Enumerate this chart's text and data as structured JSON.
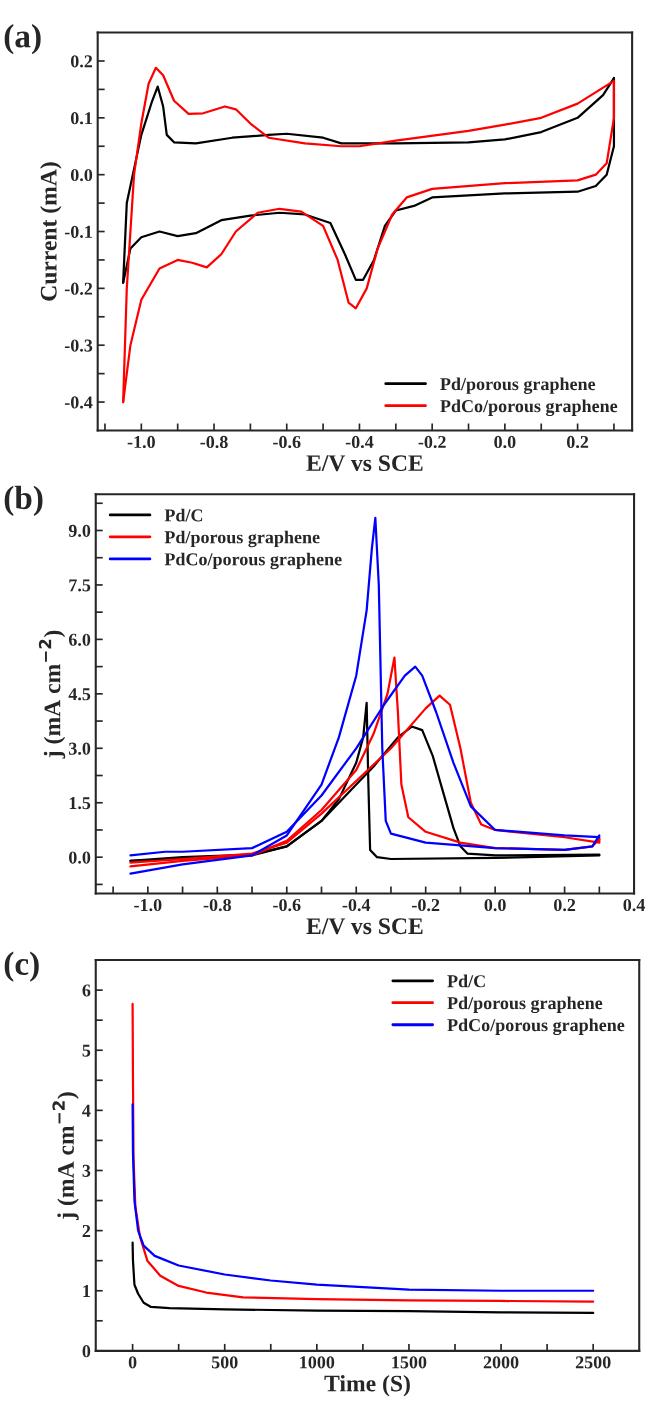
{
  "chart_data": [
    {
      "type": "line",
      "xlabel": "E/V vs SCE",
      "ylabel": "Current (mA)",
      "annotations": [
        "(a)"
      ],
      "legend": "bottom right",
      "grid": false,
      "marker": "none",
      "line_style": "solid",
      "xlim": [
        -1.12,
        0.35
      ],
      "ylim": [
        -0.45,
        0.25
      ],
      "xticks": [
        {
          "value": -1.1,
          "label": null
        },
        {
          "value": -1.0,
          "label": "-1.0"
        },
        {
          "value": -0.9,
          "label": null
        },
        -0.8,
        {
          "value": -0.7,
          "label": null
        },
        -0.6,
        {
          "value": -0.5,
          "label": null
        },
        -0.4,
        {
          "value": -0.3,
          "label": null
        },
        -0.2,
        {
          "value": -0.1,
          "label": null
        },
        {
          "value": 0.0,
          "label": "0.0"
        },
        {
          "value": 0.1,
          "label": null
        },
        0.2,
        {
          "value": 0.3,
          "label": null
        }
      ],
      "yticks": [
        -0.4,
        {
          "value": -0.35,
          "label": null
        },
        -0.3,
        {
          "value": -0.25,
          "label": null
        },
        -0.2,
        {
          "value": -0.15,
          "label": null
        },
        -0.1,
        {
          "value": -0.05,
          "label": null
        },
        {
          "value": 0.0,
          "label": "0.0"
        },
        {
          "value": 0.05,
          "label": null
        },
        0.1,
        {
          "value": 0.15,
          "label": null
        },
        0.2
      ],
      "series": [
        {
          "name": "Pd/porous graphene",
          "color": "#000000",
          "x": [
            -1.05,
            -1.04,
            -1.0,
            -0.97,
            -0.955,
            -0.94,
            -0.93,
            -0.91,
            -0.85,
            -0.75,
            -0.65,
            -0.6,
            -0.5,
            -0.45,
            -0.3,
            -0.1,
            0.0,
            0.1,
            0.2,
            0.27,
            0.3
          ],
          "values": [
            -0.19,
            -0.05,
            0.07,
            0.13,
            0.155,
            0.12,
            0.07,
            0.057,
            0.055,
            0.065,
            0.07,
            0.072,
            0.065,
            0.055,
            0.055,
            0.057,
            0.062,
            0.075,
            0.1,
            0.14,
            0.17
          ]
        },
        {
          "color": "#000000",
          "x": [
            0.3,
            0.3,
            0.28,
            0.25,
            0.2,
            0.0,
            -0.2,
            -0.25,
            -0.3,
            -0.33,
            -0.36,
            -0.39,
            -0.41,
            -0.44,
            -0.48,
            -0.55,
            -0.62,
            -0.7,
            -0.78,
            -0.85,
            -0.9,
            -0.95,
            -1.0,
            -1.03,
            -1.05
          ],
          "values": [
            0.17,
            0.05,
            0.0,
            -0.02,
            -0.03,
            -0.033,
            -0.04,
            -0.055,
            -0.063,
            -0.09,
            -0.15,
            -0.185,
            -0.185,
            -0.14,
            -0.085,
            -0.07,
            -0.067,
            -0.072,
            -0.08,
            -0.103,
            -0.108,
            -0.1,
            -0.11,
            -0.13,
            -0.19
          ]
        },
        {
          "name": "PdCo/porous graphene",
          "color": "#ff0000",
          "x": [
            -1.05,
            -1.04,
            -1.02,
            -1.0,
            -0.98,
            -0.96,
            -0.94,
            -0.91,
            -0.87,
            -0.83,
            -0.77,
            -0.74,
            -0.7,
            -0.65,
            -0.55,
            -0.45,
            -0.4,
            -0.3,
            -0.1,
            0.0,
            0.1,
            0.2,
            0.3
          ],
          "values": [
            -0.4,
            -0.2,
            0.0,
            0.09,
            0.16,
            0.188,
            0.175,
            0.13,
            0.107,
            0.108,
            0.12,
            0.115,
            0.09,
            0.065,
            0.055,
            0.05,
            0.05,
            0.06,
            0.077,
            0.088,
            0.1,
            0.125,
            0.165
          ]
        },
        {
          "color": "#ff0000",
          "x": [
            0.3,
            0.3,
            0.28,
            0.25,
            0.2,
            0.0,
            -0.2,
            -0.27,
            -0.31,
            -0.35,
            -0.38,
            -0.41,
            -0.43,
            -0.46,
            -0.5,
            -0.56,
            -0.62,
            -0.68,
            -0.74,
            -0.78,
            -0.82,
            -0.86,
            -0.9,
            -0.95,
            -1.0,
            -1.03,
            -1.05
          ],
          "values": [
            0.165,
            0.1,
            0.02,
            0.0,
            -0.01,
            -0.015,
            -0.025,
            -0.04,
            -0.07,
            -0.13,
            -0.2,
            -0.235,
            -0.225,
            -0.15,
            -0.09,
            -0.065,
            -0.06,
            -0.067,
            -0.1,
            -0.14,
            -0.163,
            -0.155,
            -0.15,
            -0.165,
            -0.22,
            -0.3,
            -0.4
          ]
        }
      ]
    },
    {
      "type": "line",
      "xlabel": "E/V vs SCE",
      "ylabel": "j (mA cm$^{−2}$)",
      "annotations": [
        "(b)"
      ],
      "legend": "top left",
      "grid": false,
      "marker": "none",
      "line_style": "solid",
      "xlim": [
        -1.15,
        0.4
      ],
      "ylim": [
        -1.0,
        10.0
      ],
      "xticks": [
        {
          "value": -1.1,
          "label": null
        },
        {
          "value": -1.0,
          "label": "-1.0"
        },
        {
          "value": -0.9,
          "label": null
        },
        -0.8,
        {
          "value": -0.7,
          "label": null
        },
        -0.6,
        {
          "value": -0.5,
          "label": null
        },
        -0.4,
        {
          "value": -0.3,
          "label": null
        },
        -0.2,
        {
          "value": -0.1,
          "label": null
        },
        {
          "value": 0.0,
          "label": "0.0"
        },
        {
          "value": 0.1,
          "label": null
        },
        0.2,
        {
          "value": 0.3,
          "label": null
        },
        0.4
      ],
      "yticks": [
        {
          "value": -0.75,
          "label": null
        },
        {
          "value": 0.0,
          "label": "0.0"
        },
        {
          "value": 0.75,
          "label": null
        },
        1.5,
        {
          "value": 2.25,
          "label": null
        },
        {
          "value": 3.0,
          "label": "3.0"
        },
        {
          "value": 3.75,
          "label": null
        },
        4.5,
        {
          "value": 5.25,
          "label": null
        },
        {
          "value": 6.0,
          "label": "6.0"
        },
        {
          "value": 6.75,
          "label": null
        },
        7.5,
        {
          "value": 8.25,
          "label": null
        },
        {
          "value": 9.0,
          "label": "9.0"
        },
        {
          "value": 9.75,
          "label": null
        }
      ],
      "series": [
        {
          "name": "Pd/C",
          "color": "#000000",
          "x": [
            -1.05,
            -0.9,
            -0.7,
            -0.6,
            -0.5,
            -0.45,
            -0.4,
            -0.38,
            -0.37,
            -0.365,
            -0.36,
            -0.34,
            -0.3,
            0.0,
            0.3
          ],
          "values": [
            -0.1,
            0.0,
            0.07,
            0.3,
            1.0,
            1.6,
            2.6,
            3.3,
            4.25,
            2.0,
            0.2,
            0.0,
            -0.05,
            -0.02,
            0.05
          ]
        },
        {
          "color": "#000000",
          "x": [
            0.3,
            0.0,
            -0.08,
            -0.1,
            -0.12,
            -0.15,
            -0.18,
            -0.21,
            -0.24,
            -0.28,
            -0.35,
            -0.4,
            -0.5,
            -0.6,
            -0.7,
            -0.9,
            -1.05
          ],
          "values": [
            0.07,
            0.05,
            0.1,
            0.3,
            0.8,
            1.8,
            2.8,
            3.5,
            3.6,
            3.3,
            2.5,
            2.0,
            1.0,
            0.3,
            0.05,
            -0.05,
            -0.1
          ]
        },
        {
          "name": "Pd/porous graphene",
          "color": "#ff0000",
          "x": [
            -1.05,
            -0.9,
            -0.7,
            -0.6,
            -0.5,
            -0.4,
            -0.35,
            -0.31,
            -0.29,
            -0.28,
            -0.27,
            -0.25,
            -0.2,
            -0.1,
            0.0,
            0.2,
            0.28,
            0.3
          ],
          "values": [
            -0.25,
            -0.1,
            0.05,
            0.45,
            1.3,
            2.4,
            3.4,
            4.5,
            5.5,
            4.0,
            2.0,
            1.1,
            0.7,
            0.4,
            0.25,
            0.2,
            0.3,
            0.5
          ]
        },
        {
          "color": "#ff0000",
          "x": [
            0.3,
            0.3,
            0.2,
            0.0,
            -0.04,
            -0.07,
            -0.1,
            -0.13,
            -0.16,
            -0.2,
            -0.3,
            -0.4,
            -0.5,
            -0.6,
            -0.7,
            -0.9,
            -1.05
          ],
          "values": [
            0.5,
            0.4,
            0.55,
            0.75,
            0.9,
            1.5,
            3.0,
            4.2,
            4.45,
            4.1,
            3.0,
            2.1,
            1.2,
            0.4,
            0.1,
            -0.05,
            -0.15
          ]
        },
        {
          "name": "PdCo/porous graphene",
          "color": "#0000ff",
          "x": [
            -1.05,
            -0.9,
            -0.7,
            -0.6,
            -0.5,
            -0.45,
            -0.4,
            -0.37,
            -0.355,
            -0.345,
            -0.335,
            -0.325,
            -0.315,
            -0.3,
            -0.2,
            0.0,
            0.2,
            0.28,
            0.3
          ],
          "values": [
            -0.45,
            -0.2,
            0.05,
            0.6,
            2.0,
            3.3,
            5.0,
            6.8,
            8.5,
            9.35,
            7.5,
            3.0,
            1.0,
            0.65,
            0.4,
            0.25,
            0.2,
            0.3,
            0.6
          ]
        },
        {
          "color": "#0000ff",
          "x": [
            0.3,
            0.2,
            0.0,
            -0.07,
            -0.12,
            -0.17,
            -0.21,
            -0.23,
            -0.26,
            -0.32,
            -0.4,
            -0.5,
            -0.6,
            -0.7,
            -0.9,
            -0.95,
            -1.05
          ],
          "values": [
            0.55,
            0.6,
            0.75,
            1.4,
            2.6,
            4.0,
            5.0,
            5.25,
            5.0,
            4.2,
            3.0,
            1.7,
            0.7,
            0.25,
            0.15,
            0.15,
            0.05
          ]
        }
      ]
    },
    {
      "type": "line",
      "xlabel": "Time (S)",
      "ylabel": "j (mA cm$^{−2}$)",
      "annotations": [
        "(c)"
      ],
      "legend": "top right",
      "grid": false,
      "marker": "none",
      "line_style": "solid",
      "xlim": [
        -200,
        2750
      ],
      "ylim": [
        0,
        6.5
      ],
      "xticks": [
        0,
        {
          "value": 250,
          "label": null
        },
        500,
        {
          "value": 750,
          "label": null
        },
        1000,
        {
          "value": 1250,
          "label": null
        },
        1500,
        {
          "value": 1750,
          "label": null
        },
        2000,
        {
          "value": 2250,
          "label": null
        },
        2500
      ],
      "yticks": [
        0,
        {
          "value": 0.5,
          "label": null
        },
        1,
        {
          "value": 1.5,
          "label": null
        },
        2,
        {
          "value": 2.5,
          "label": null
        },
        3,
        {
          "value": 3.5,
          "label": null
        },
        4,
        {
          "value": 4.5,
          "label": null
        },
        5,
        {
          "value": 5.5,
          "label": null
        },
        6
      ],
      "series": [
        {
          "name": "Pd/C",
          "color": "#000000",
          "x": [
            0,
            2,
            10,
            30,
            60,
            100,
            200,
            500,
            1000,
            1500,
            2000,
            2500
          ],
          "values": [
            1.8,
            1.5,
            1.1,
            0.95,
            0.8,
            0.73,
            0.71,
            0.69,
            0.67,
            0.66,
            0.64,
            0.63
          ]
        },
        {
          "name": "Pd/porous graphene",
          "color": "#ff0000",
          "x": [
            0,
            2,
            5,
            15,
            40,
            80,
            150,
            250,
            400,
            600,
            1000,
            1500,
            2000,
            2500
          ],
          "values": [
            5.77,
            4.5,
            3.2,
            2.4,
            1.9,
            1.5,
            1.25,
            1.08,
            0.97,
            0.89,
            0.86,
            0.84,
            0.83,
            0.82
          ]
        },
        {
          "name": "PdCo/porous graphene",
          "color": "#0000ff",
          "x": [
            0,
            2,
            10,
            30,
            60,
            120,
            250,
            500,
            750,
            1000,
            1500,
            2000,
            2500
          ],
          "values": [
            4.1,
            3.3,
            2.5,
            2.0,
            1.75,
            1.58,
            1.42,
            1.27,
            1.17,
            1.1,
            1.02,
            1.0,
            1.0
          ]
        }
      ]
    }
  ]
}
